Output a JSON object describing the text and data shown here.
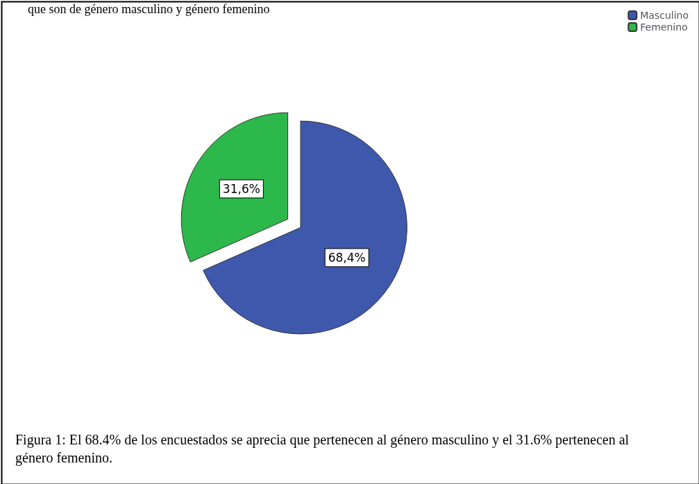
{
  "chart_data": {
    "type": "pie",
    "title": "que son de género masculino y género femenino",
    "categories": [
      "Masculino",
      "Femenino"
    ],
    "values": [
      68.4,
      31.6
    ],
    "colors": [
      "#3e58ac",
      "#2db84b"
    ],
    "value_labels": [
      "68,4%",
      "31,6%"
    ],
    "legend": "top right",
    "annotations": [
      "Figura 1: El 68.4% de los encuestados se aprecia que pertenecen al género masculino y el 31.6% pertenecen al género femenino."
    ]
  }
}
